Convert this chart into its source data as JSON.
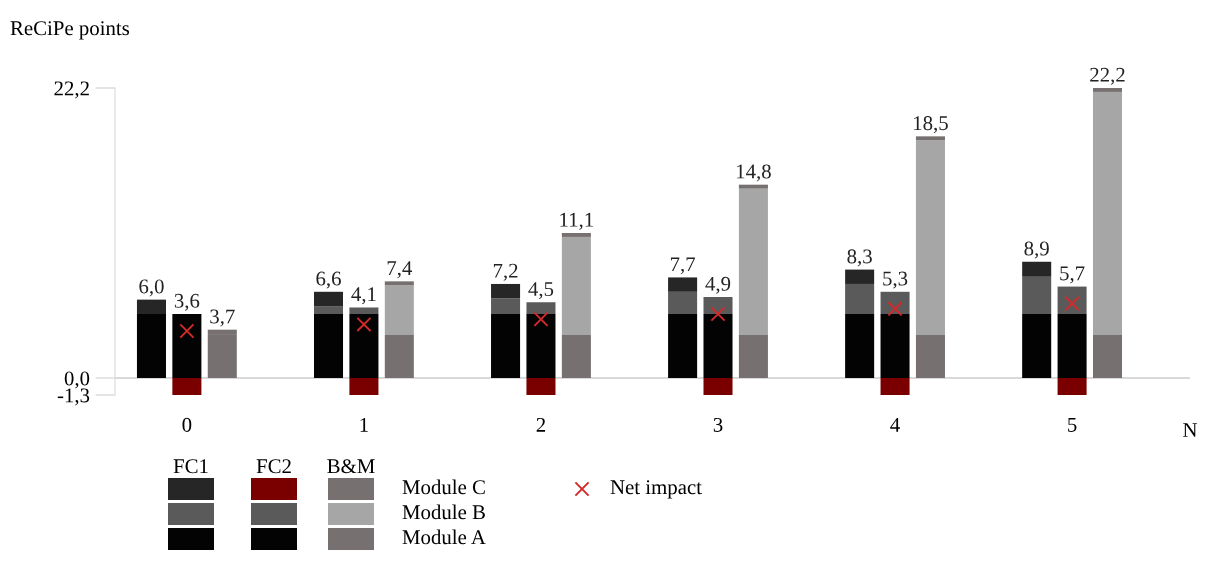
{
  "chart_data": {
    "type": "bar",
    "stacked": true,
    "ylabel": "ReCiPe points",
    "xlabel": "N",
    "categories": [
      null,
      "0",
      null,
      null,
      null,
      null,
      "1",
      null,
      null,
      null,
      null,
      "2",
      null,
      null,
      null,
      null,
      "3",
      null,
      null,
      null,
      null,
      "4",
      null,
      null,
      null,
      null,
      "5",
      null,
      null,
      null
    ],
    "ylim": [
      -1.3,
      22.2
    ],
    "yticks": [
      {
        "value": -1.3,
        "label": "-1,3"
      },
      {
        "value": 0.0,
        "label": "0,0"
      },
      {
        "value": 22.2,
        "label": "22,2"
      }
    ],
    "annotations": [
      "FC1",
      "FC2",
      "B&M"
    ],
    "totals": [
      "6,0",
      "3,6",
      "3,7",
      null,
      null,
      "6,6",
      "4,1",
      "7,4",
      null,
      null,
      "7,2",
      "4,5",
      "11,1",
      null,
      null,
      "7,7",
      "4,9",
      "14,8",
      null,
      null,
      "8,3",
      "5,3",
      "18,5",
      null,
      null,
      "8,9",
      "5,7",
      "22,2",
      null,
      null
    ],
    "series": [
      {
        "name": "Module A",
        "values": [
          4.9,
          4.9,
          3.3,
          null,
          null,
          4.9,
          4.9,
          3.3,
          null,
          null,
          4.9,
          4.9,
          3.3,
          null,
          null,
          4.9,
          4.9,
          3.3,
          null,
          null,
          4.9,
          4.9,
          3.3,
          null,
          null,
          4.9,
          4.9,
          3.3,
          null,
          null
        ],
        "colors": [
          "#030303",
          "#030303",
          "#767070",
          null,
          null,
          "#030303",
          "#030303",
          "#767070",
          null,
          null,
          "#030303",
          "#030303",
          "#767070",
          null,
          null,
          "#030303",
          "#030303",
          "#767070",
          null,
          null,
          "#030303",
          "#030303",
          "#767070",
          null,
          null,
          "#030303",
          "#030303",
          "#767070",
          null,
          null
        ]
      },
      {
        "name": "Module B",
        "values": [
          0,
          0,
          0,
          null,
          null,
          0.6,
          0.5,
          3.8,
          null,
          null,
          1.2,
          0.9,
          7.5,
          null,
          null,
          1.7,
          1.3,
          11.2,
          null,
          null,
          2.3,
          1.7,
          14.9,
          null,
          null,
          2.9,
          2.1,
          18.6,
          null,
          null
        ],
        "colors": [
          "#5a5a5a",
          "#5a5a5a",
          "#a6a6a6",
          null,
          null,
          "#5a5a5a",
          "#5a5a5a",
          "#a6a6a6",
          null,
          null,
          "#5a5a5a",
          "#5a5a5a",
          "#a6a6a6",
          null,
          null,
          "#5a5a5a",
          "#5a5a5a",
          "#a6a6a6",
          null,
          null,
          "#5a5a5a",
          "#5a5a5a",
          "#a6a6a6",
          null,
          null,
          "#5a5a5a",
          "#5a5a5a",
          "#a6a6a6",
          null,
          null
        ]
      },
      {
        "name": "Module C",
        "values": [
          1.1,
          -1.3,
          0.4,
          null,
          null,
          1.1,
          -1.3,
          0.3,
          null,
          null,
          1.1,
          -1.3,
          0.3,
          null,
          null,
          1.1,
          -1.3,
          0.3,
          null,
          null,
          1.1,
          -1.3,
          0.3,
          null,
          null,
          1.1,
          -1.3,
          0.3,
          null,
          null
        ],
        "colors": [
          "#262626",
          "#7a0000",
          "#767070",
          null,
          null,
          "#262626",
          "#7a0000",
          "#767070",
          null,
          null,
          "#262626",
          "#7a0000",
          "#767070",
          null,
          null,
          "#262626",
          "#7a0000",
          "#767070",
          null,
          null,
          "#262626",
          "#7a0000",
          "#767070",
          null,
          null,
          "#262626",
          "#7a0000",
          "#767070",
          null,
          null
        ]
      },
      {
        "name": "Net impact",
        "type": "scatter",
        "color": "#d42a2a",
        "marker": "cross",
        "x": [
          "0",
          "1",
          "2",
          "3",
          "4",
          "5"
        ],
        "values": [
          3.6,
          4.1,
          4.5,
          4.9,
          5.3,
          5.7
        ]
      }
    ],
    "legend": "bottom",
    "grid": false
  }
}
